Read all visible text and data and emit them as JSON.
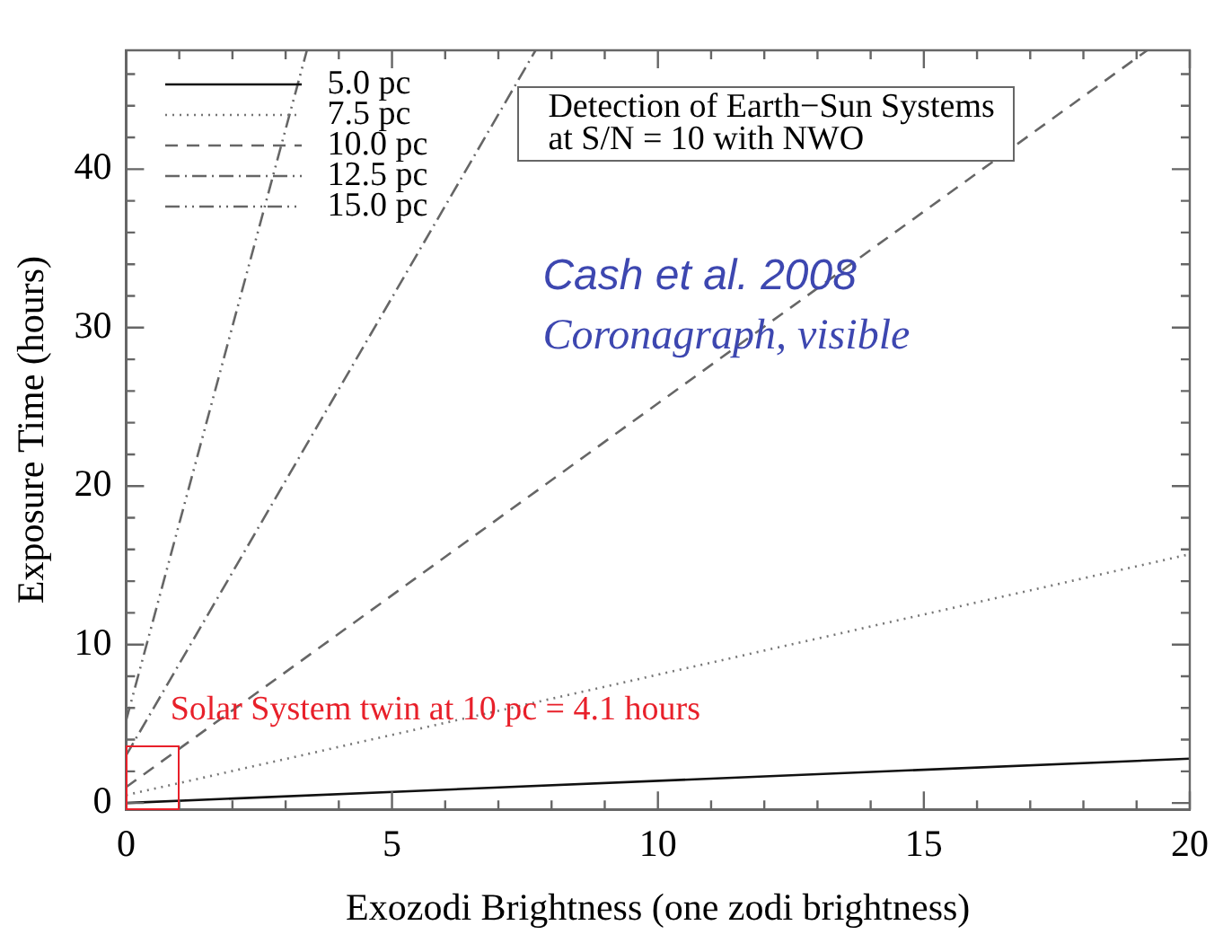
{
  "chart_data": {
    "type": "line",
    "xlabel": "Exozodi Brightness (one zodi brightness)",
    "ylabel": "Exposure Time (hours)",
    "xlim": [
      0,
      20
    ],
    "ylim": [
      -0.4,
      47.5
    ],
    "xticks": [
      0,
      {
        "value": 1,
        "label": null
      },
      {
        "value": 2,
        "label": null
      },
      {
        "value": 3,
        "label": null
      },
      {
        "value": 4,
        "label": null
      },
      5,
      {
        "value": 6,
        "label": null
      },
      {
        "value": 7,
        "label": null
      },
      {
        "value": 8,
        "label": null
      },
      {
        "value": 9,
        "label": null
      },
      10,
      {
        "value": 11,
        "label": null
      },
      {
        "value": 12,
        "label": null
      },
      {
        "value": 13,
        "label": null
      },
      {
        "value": 14,
        "label": null
      },
      15,
      {
        "value": 16,
        "label": null
      },
      {
        "value": 17,
        "label": null
      },
      {
        "value": 18,
        "label": null
      },
      {
        "value": 19,
        "label": null
      },
      20
    ],
    "yticks": [
      0,
      {
        "value": 2,
        "label": null
      },
      {
        "value": 4,
        "label": null
      },
      {
        "value": 6,
        "label": null
      },
      {
        "value": 8,
        "label": null
      },
      10,
      {
        "value": 12,
        "label": null
      },
      {
        "value": 14,
        "label": null
      },
      {
        "value": 16,
        "label": null
      },
      {
        "value": 18,
        "label": null
      },
      20,
      {
        "value": 22,
        "label": null
      },
      {
        "value": 24,
        "label": null
      },
      {
        "value": 26,
        "label": null
      },
      {
        "value": 28,
        "label": null
      },
      30,
      {
        "value": 32,
        "label": null
      },
      {
        "value": 34,
        "label": null
      },
      {
        "value": 36,
        "label": null
      },
      {
        "value": 38,
        "label": null
      },
      40,
      {
        "value": 42,
        "label": null
      },
      {
        "value": 44,
        "label": null
      },
      {
        "value": 46,
        "label": null
      }
    ],
    "grid": false,
    "legend": "top left",
    "series": [
      {
        "name": "5.0 pc",
        "color": "#111111",
        "line_style": "solid",
        "x": [
          0,
          20
        ],
        "values": [
          0,
          2.8
        ]
      },
      {
        "name": "7.5 pc",
        "color": "#777777",
        "line_style": "dotted",
        "x": [
          0,
          20
        ],
        "values": [
          0.5,
          15.7
        ]
      },
      {
        "name": "10.0 pc",
        "color": "#666666",
        "line_style": "dashed",
        "x": [
          0,
          19.2
        ],
        "values": [
          1.0,
          47.5
        ]
      },
      {
        "name": "12.5 pc",
        "color": "#666666",
        "line_style": "dashdot",
        "x": [
          0,
          7.7
        ],
        "values": [
          3.0,
          47.5
        ]
      },
      {
        "name": "15.0 pc",
        "color": "#666666",
        "line_style": "dashdotdot",
        "x": [
          0,
          3.4
        ],
        "values": [
          5.2,
          47.5
        ]
      }
    ],
    "annotations": [
      "Detection of Earth−Sun Systems\nat S/N = 10 with NWO",
      "Cash et al. 2008",
      "Coronagraph, visible",
      {
        "text": "Solar System twin at 10 pc = 4.1 hours",
        "x": 1,
        "y": 3.6
      }
    ]
  }
}
